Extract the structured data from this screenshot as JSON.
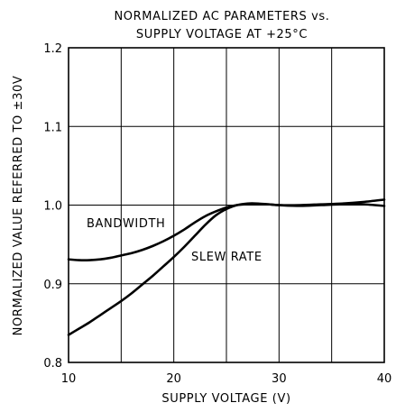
{
  "chart_data": {
    "type": "line",
    "title": "NORMALIZED AC PARAMETERS vs.",
    "subtitle": "SUPPLY VOLTAGE AT +25°C",
    "xlabel": "SUPPLY VOLTAGE (V)",
    "ylabel": "NORMALIZED VALUE REFERRED TO ±30V",
    "xlim": [
      10,
      40
    ],
    "ylim": [
      0.8,
      1.2
    ],
    "x_ticks": [
      10,
      20,
      30,
      40
    ],
    "x_tick_labels": [
      "10",
      "20",
      "30",
      "40"
    ],
    "x_grid": [
      15,
      20,
      25,
      30,
      35
    ],
    "y_ticks": [
      0.8,
      0.9,
      1.0,
      1.1,
      1.2
    ],
    "y_tick_labels": [
      "0.8",
      "0.9",
      "1.0",
      "1.1",
      "1.2"
    ],
    "grid": true,
    "legend": "none",
    "series": [
      {
        "name": "BANDWIDTH",
        "x": [
          10,
          11,
          12,
          13,
          14,
          15,
          16,
          17,
          18,
          19,
          20,
          21,
          22,
          23,
          24,
          25,
          26,
          27,
          28,
          29,
          30,
          32,
          34,
          36,
          38,
          40
        ],
        "y": [
          0.931,
          0.93,
          0.93,
          0.931,
          0.933,
          0.936,
          0.939,
          0.943,
          0.948,
          0.954,
          0.961,
          0.969,
          0.978,
          0.986,
          0.992,
          0.997,
          1.0,
          1.001,
          1.001,
          1.001,
          1.0,
          1.0,
          1.001,
          1.002,
          1.004,
          1.007
        ]
      },
      {
        "name": "SLEW RATE",
        "x": [
          10,
          11,
          12,
          13,
          14,
          15,
          16,
          17,
          18,
          19,
          20,
          21,
          22,
          23,
          24,
          25,
          26,
          27,
          28,
          29,
          30,
          32,
          34,
          36,
          38,
          40
        ],
        "y": [
          0.835,
          0.843,
          0.851,
          0.86,
          0.869,
          0.878,
          0.888,
          0.899,
          0.91,
          0.922,
          0.934,
          0.947,
          0.961,
          0.975,
          0.987,
          0.995,
          1.0,
          1.002,
          1.002,
          1.001,
          1.0,
          0.999,
          1.0,
          1.001,
          1.001,
          0.999
        ]
      }
    ],
    "annotations": [
      {
        "text": "BANDWIDTH",
        "series": "BANDWIDTH"
      },
      {
        "text": "SLEW RATE",
        "series": "SLEW RATE"
      }
    ]
  }
}
